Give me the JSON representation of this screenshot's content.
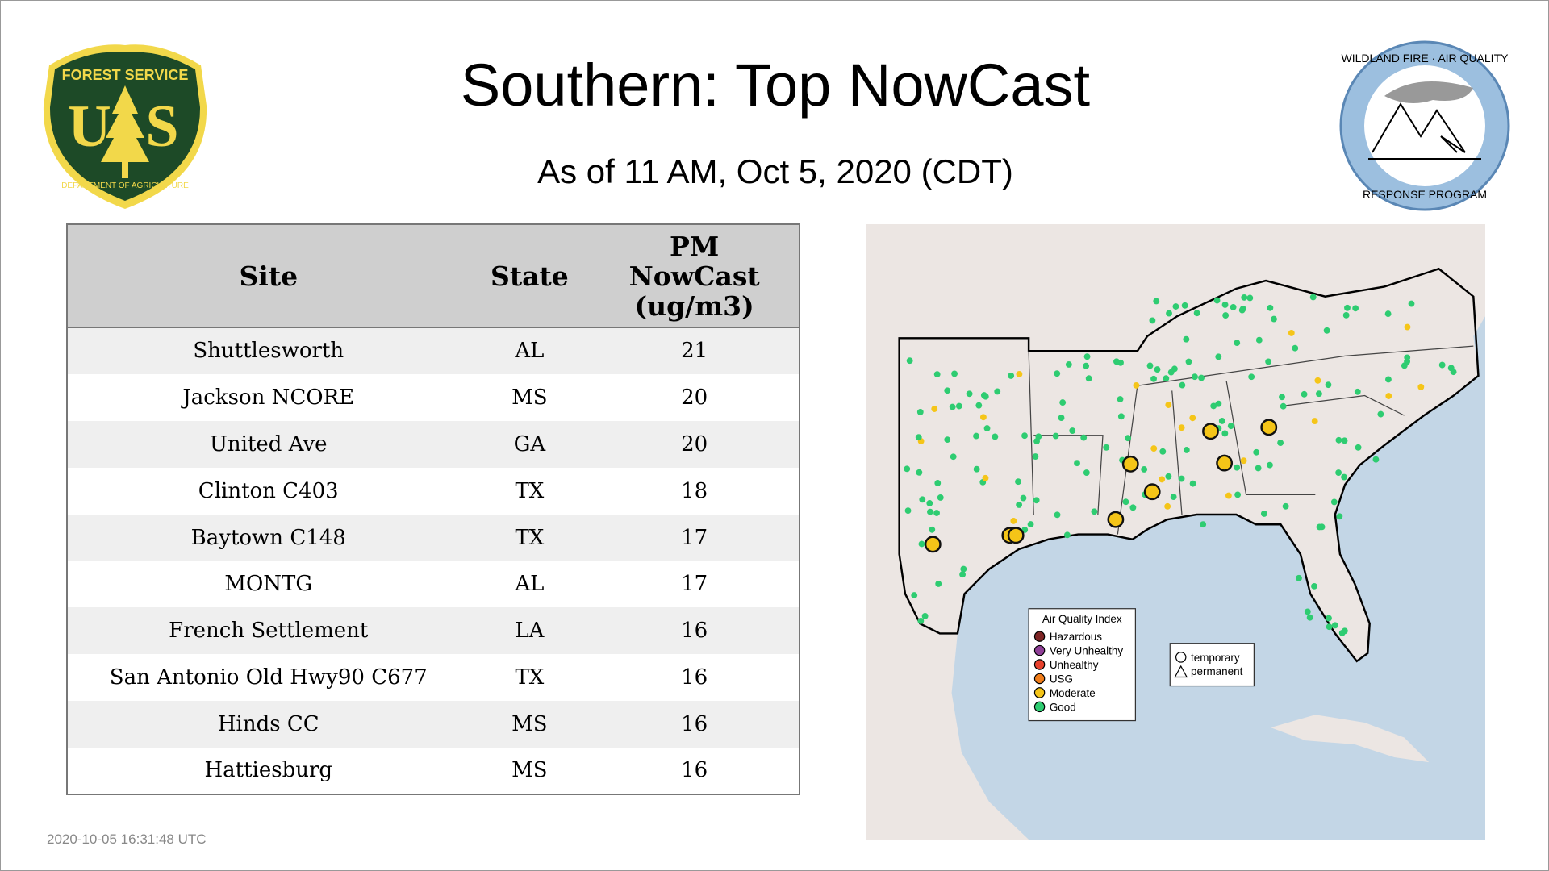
{
  "header": {
    "title": "Southern: Top NowCast",
    "subtitle": "As of 11 AM, Oct  5, 2020 (CDT)"
  },
  "logos": {
    "left": "FOREST SERVICE U S DEPARTMENT OF AGRICULTURE",
    "right": "WILDLAND FIRE AIR QUALITY RESPONSE PROGRAM"
  },
  "table": {
    "columns": [
      "Site",
      "State",
      "PM NowCast (ug/m3)"
    ],
    "rows": [
      [
        "Shuttlesworth",
        "AL",
        "21"
      ],
      [
        "Jackson NCORE",
        "MS",
        "20"
      ],
      [
        "United Ave",
        "GA",
        "20"
      ],
      [
        "Clinton C403",
        "TX",
        "18"
      ],
      [
        "Baytown C148",
        "TX",
        "17"
      ],
      [
        "MONTG",
        "AL",
        "17"
      ],
      [
        "French Settlement",
        "LA",
        "16"
      ],
      [
        "San Antonio Old Hwy90 C677",
        "TX",
        "16"
      ],
      [
        "Hinds CC",
        "MS",
        "16"
      ],
      [
        "Hattiesburg",
        "MS",
        "16"
      ]
    ]
  },
  "map": {
    "legend_title": "Air Quality Index",
    "legend": [
      {
        "label": "Hazardous",
        "color": "#7e2525"
      },
      {
        "label": "Very Unhealthy",
        "color": "#8f3f97"
      },
      {
        "label": "Unhealthy",
        "color": "#e8412d"
      },
      {
        "label": "USG",
        "color": "#f07d1a"
      },
      {
        "label": "Moderate",
        "color": "#f5c518"
      },
      {
        "label": "Good",
        "color": "#2ecc71"
      }
    ],
    "shape_legend": [
      {
        "label": "temporary",
        "shape": "circle"
      },
      {
        "label": "permanent",
        "shape": "triangle"
      }
    ],
    "colors": {
      "ocean": "#c3d6e6",
      "land": "#ece6e3"
    }
  },
  "footer": {
    "timestamp": "2020-10-05 16:31:48 UTC"
  }
}
